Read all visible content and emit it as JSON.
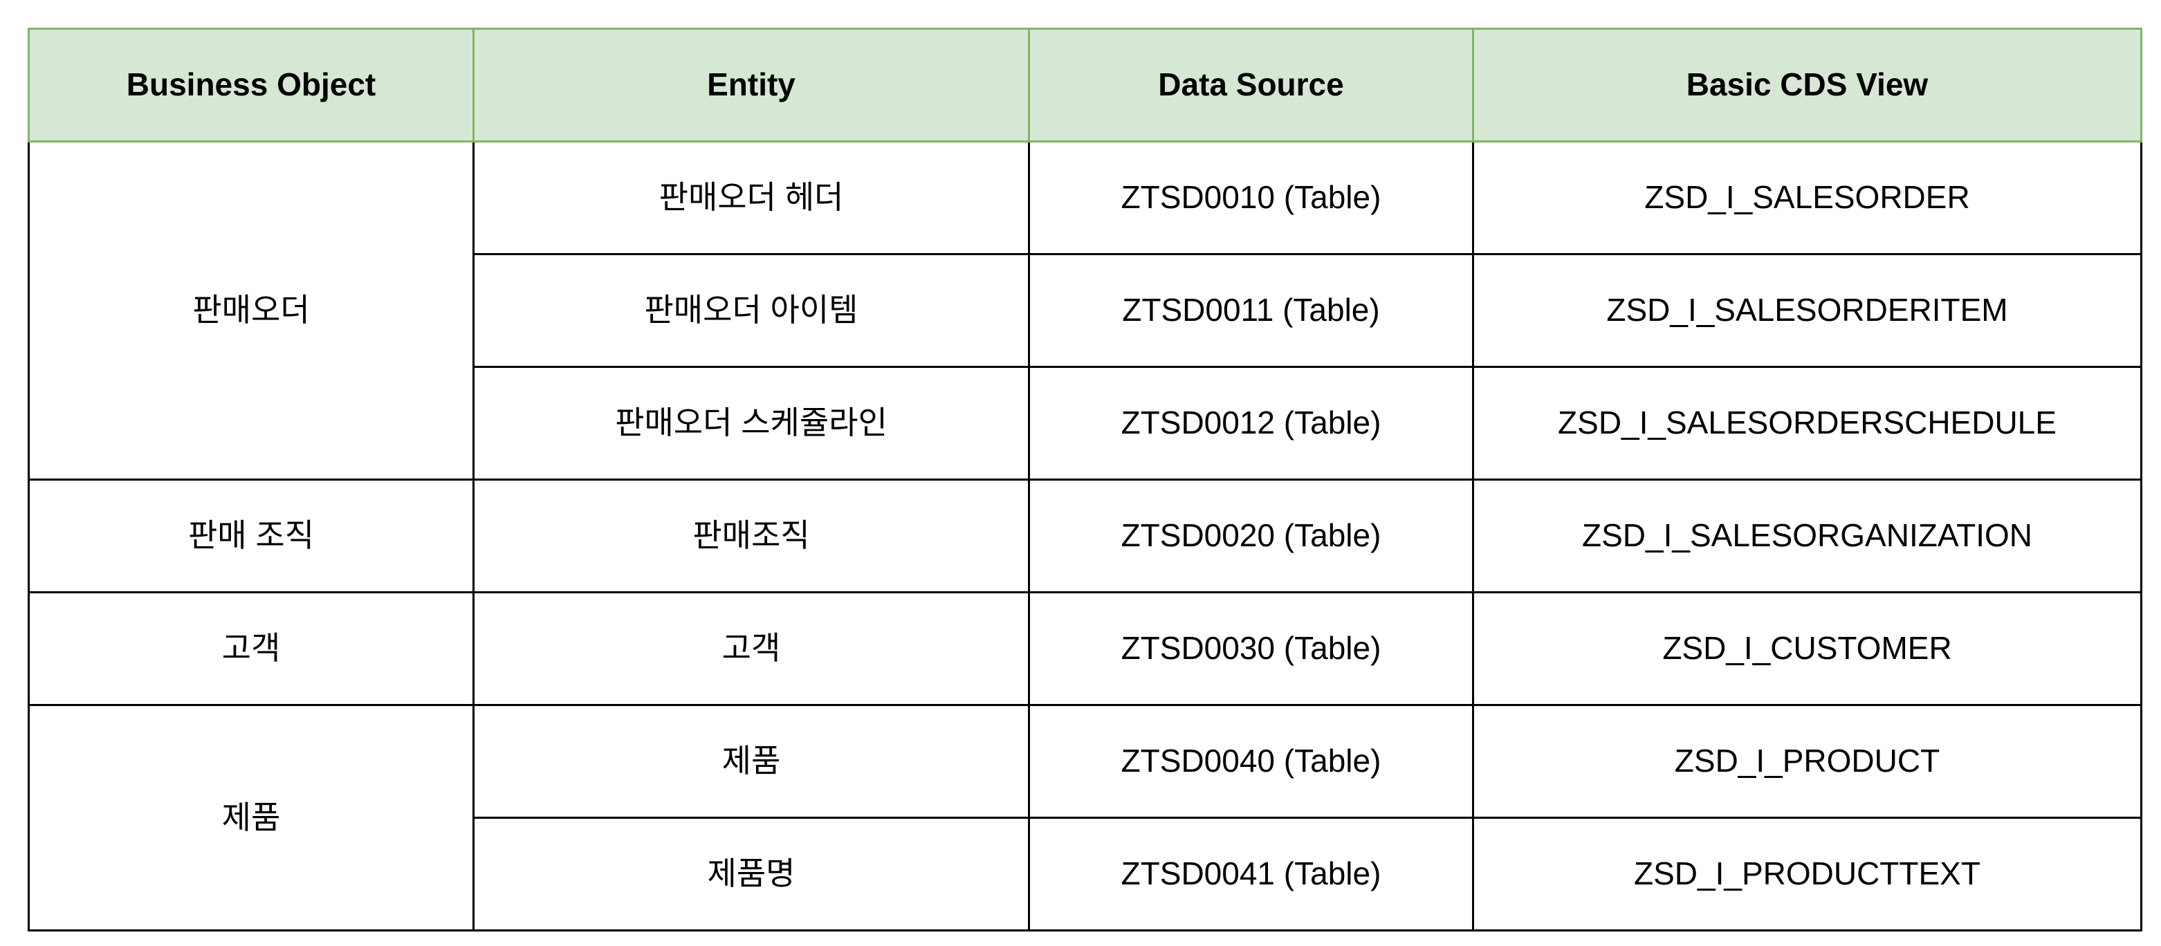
{
  "table": {
    "headers": [
      "Business Object",
      "Entity",
      "Data Source",
      "Basic CDS View"
    ],
    "groups": [
      {
        "business_object": "판매오더",
        "rows": [
          {
            "entity": "판매오더 헤더",
            "data_source": "ZTSD0010 (Table)",
            "cds_view": "ZSD_I_SALESORDER"
          },
          {
            "entity": "판매오더 아이템",
            "data_source": "ZTSD0011 (Table)",
            "cds_view": "ZSD_I_SALESORDERITEM"
          },
          {
            "entity": "판매오더 스케쥴라인",
            "data_source": "ZTSD0012 (Table)",
            "cds_view": "ZSD_I_SALESORDERSCHEDULE"
          }
        ]
      },
      {
        "business_object": "판매 조직",
        "rows": [
          {
            "entity": "판매조직",
            "data_source": "ZTSD0020 (Table)",
            "cds_view": "ZSD_I_SALESORGANIZATION"
          }
        ]
      },
      {
        "business_object": "고객",
        "rows": [
          {
            "entity": "고객",
            "data_source": "ZTSD0030 (Table)",
            "cds_view": "ZSD_I_CUSTOMER"
          }
        ]
      },
      {
        "business_object": "제품",
        "rows": [
          {
            "entity": "제품",
            "data_source": "ZTSD0040 (Table)",
            "cds_view": "ZSD_I_PRODUCT"
          },
          {
            "entity": "제품명",
            "data_source": "ZTSD0041 (Table)",
            "cds_view": "ZSD_I_PRODUCTTEXT"
          }
        ]
      }
    ]
  },
  "colors": {
    "header_background": "#d6e8d4",
    "header_border": "#82b366",
    "grid_border": "#000000"
  }
}
